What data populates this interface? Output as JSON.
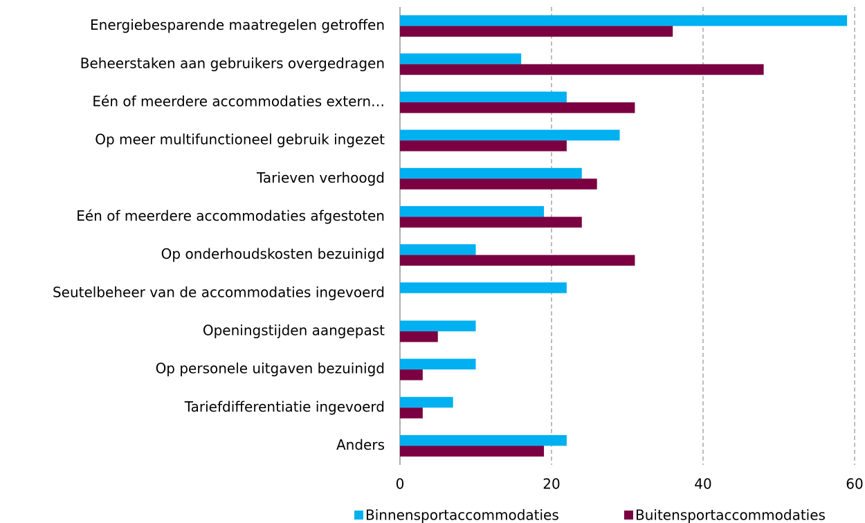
{
  "chart_data": {
    "type": "hbar",
    "categories": [
      "Energiebesparende maatregelen getroffen",
      "Beheerstaken  aan gebruikers overgedragen",
      "Eén of meerdere accommodaties extern…",
      "Op meer multifunctioneel gebruik ingezet",
      "Tarieven verhoogd",
      "Eén of meerdere accommodaties afgestoten",
      "Op onderhoudskosten bezuinigd",
      "Seutelbeheer van de accommodaties ingevoerd",
      "Openingstijden aangepast",
      "Op personele uitgaven bezuinigd",
      "Tariefdifferentiatie ingevoerd",
      "Anders"
    ],
    "series": [
      {
        "name": "Binnensportaccommodaties",
        "color": "#00b0f0",
        "values": [
          59,
          16,
          22,
          29,
          24,
          19,
          10,
          22,
          10,
          10,
          7,
          22
        ]
      },
      {
        "name": "Buitensportaccommodaties",
        "color": "#7b0041",
        "values": [
          36,
          48,
          31,
          22,
          26,
          24,
          31,
          0,
          5,
          3,
          3,
          19
        ]
      }
    ],
    "xlim": [
      0,
      60
    ],
    "xticks": [
      0,
      20,
      40,
      60
    ],
    "grid": true,
    "legend": "bottom"
  }
}
